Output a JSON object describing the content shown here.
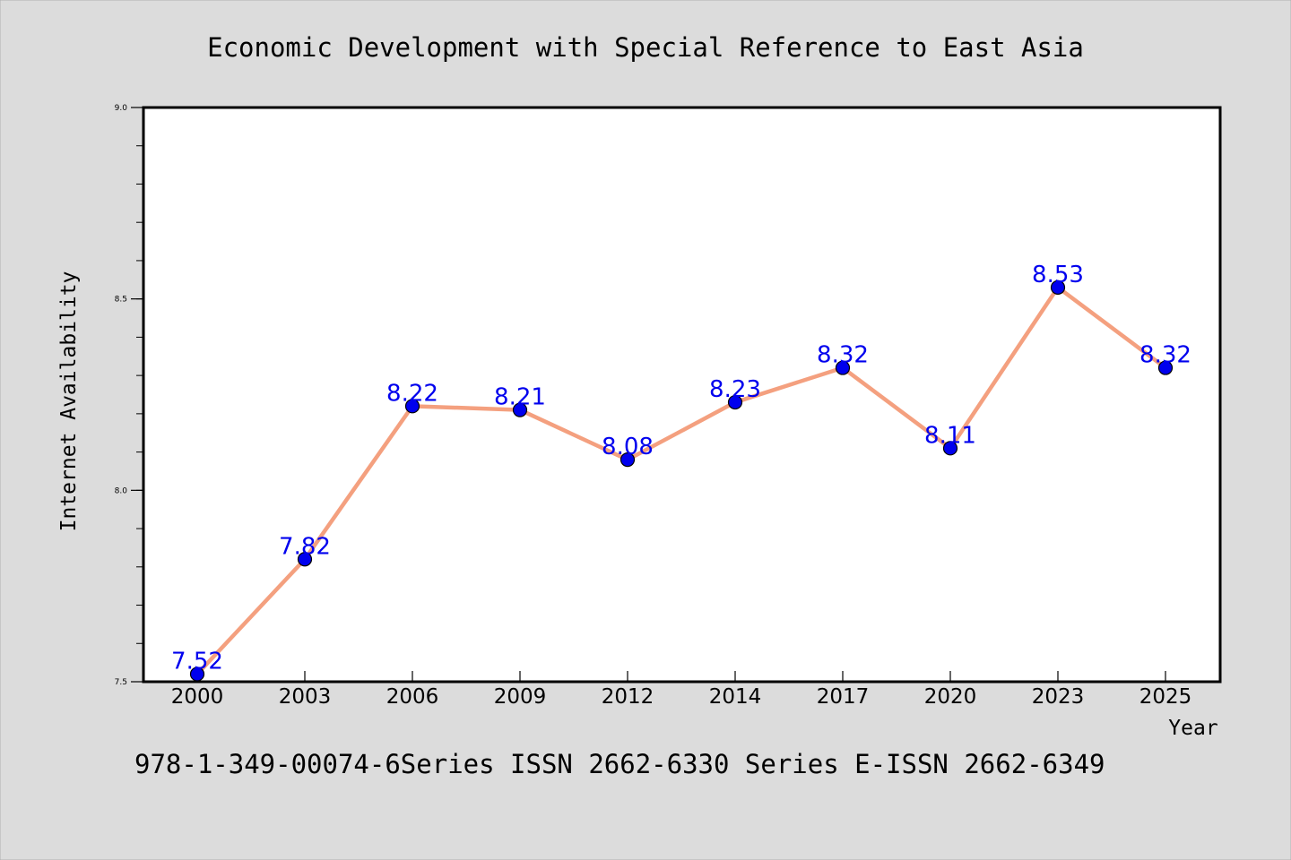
{
  "colors": {
    "background": "#dcdcdc",
    "plot_background": "#ffffff",
    "line": "#f4a07f",
    "marker": "#0000ee",
    "data_label": "#0000ee"
  },
  "chart_data": {
    "type": "line",
    "title": "Economic Development with Special Reference to East Asia",
    "xlabel": "Year",
    "ylabel": "Internet Availability",
    "categories": [
      "2000",
      "2003",
      "2006",
      "2009",
      "2012",
      "2014",
      "2017",
      "2020",
      "2023",
      "2025"
    ],
    "series": [
      {
        "values": [
          7.52,
          7.82,
          8.22,
          8.21,
          8.08,
          8.23,
          8.32,
          8.11,
          8.53,
          8.32
        ],
        "labels": [
          "7.52",
          "7.82",
          "8.22",
          "8.21",
          "8.08",
          "8.23",
          "8.32",
          "8.11",
          "8.53",
          "8.32"
        ]
      }
    ],
    "ylim": [
      7.5,
      9.0
    ],
    "yticks": [
      "7.5",
      "8.0",
      "8.5",
      "9.0"
    ],
    "grid": false,
    "legend": "none"
  },
  "footer": {
    "text": "978-1-349-00074-6Series ISSN 2662-6330 Series E-ISSN 2662-6349"
  }
}
